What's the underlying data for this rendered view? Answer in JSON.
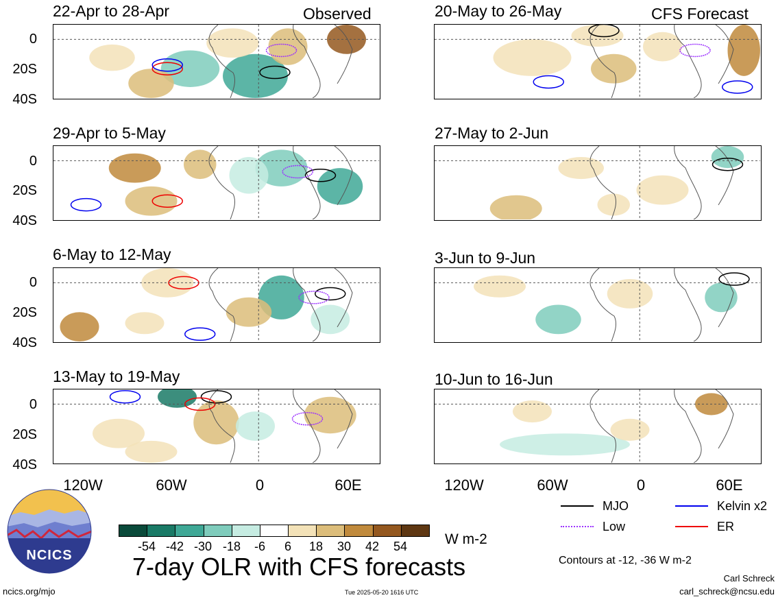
{
  "header": {
    "left_label": "Observed",
    "right_label": "CFS Forecast"
  },
  "panels_left": [
    {
      "title": "22-Apr to 28-Apr"
    },
    {
      "title": "29-Apr to 5-May"
    },
    {
      "title": "6-May to 12-May"
    },
    {
      "title": "13-May to 19-May"
    }
  ],
  "panels_right": [
    {
      "title": "20-May to 26-May"
    },
    {
      "title": "27-May to 2-Jun"
    },
    {
      "title": "3-Jun to 9-Jun"
    },
    {
      "title": "10-Jun to 16-Jun"
    }
  ],
  "y_ticks": [
    "0",
    "20S",
    "40S"
  ],
  "x_ticks": [
    "120W",
    "60W",
    "0",
    "60E"
  ],
  "colorbar": {
    "ticks": [
      "-54",
      "-42",
      "-30",
      "-18",
      "-6",
      "6",
      "18",
      "30",
      "42",
      "54"
    ],
    "colors": [
      "#0a4a3a",
      "#1a7a66",
      "#3fa896",
      "#7fccbc",
      "#c6ece2",
      "#ffffff",
      "#f3e2b8",
      "#dcbd7a",
      "#c08a3c",
      "#94581f",
      "#5e3712"
    ],
    "units": "W m-2"
  },
  "legend": {
    "mjo": {
      "label": "MJO",
      "color": "#000000"
    },
    "kelvin": {
      "label": "Kelvin x2",
      "color": "#0000ee"
    },
    "low": {
      "label": "Low",
      "color": "#9b30ff"
    },
    "er": {
      "label": "ER",
      "color": "#ee0000"
    }
  },
  "footer": {
    "main_title": "7-day OLR with CFS forecasts",
    "contours_note": "Contours at -12, -36 W m-2",
    "author": "Carl Schreck",
    "email": "carl_schreck@ncsu.edu",
    "website": "ncics.org/mjo",
    "timestamp": "Tue 2025-05-20 1616 UTC",
    "logo_text": "NCICS"
  }
}
